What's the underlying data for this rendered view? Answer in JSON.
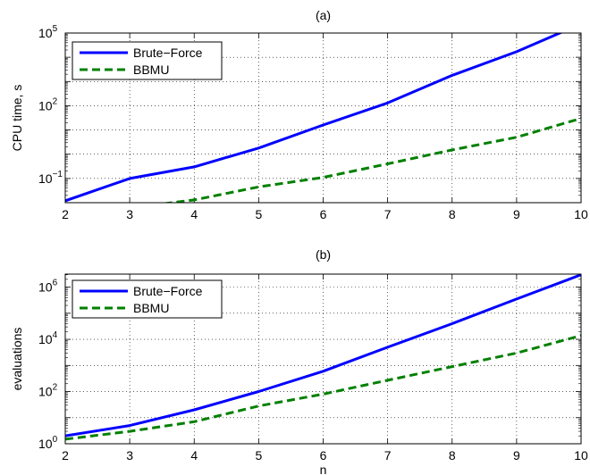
{
  "chart_data": [
    {
      "type": "line",
      "title": "(a)",
      "xlabel": "",
      "ylabel": "CPU time, s",
      "yscale": "log",
      "xlim": [
        2,
        10
      ],
      "ylim_exp": [
        -2,
        5
      ],
      "x": [
        2,
        3,
        4,
        5,
        6,
        7,
        8,
        9,
        10
      ],
      "xticks": [
        "2",
        "3",
        "4",
        "5",
        "6",
        "7",
        "8",
        "9",
        "10"
      ],
      "yticks": [
        {
          "exp": -1,
          "base": "10",
          "power": "−1"
        },
        {
          "exp": 2,
          "base": "10",
          "power": "2"
        },
        {
          "exp": 5,
          "base": "10",
          "power": "5"
        }
      ],
      "grid": true,
      "legend_position": "top-left",
      "series": [
        {
          "name": "Brute−Force",
          "style": "solid",
          "color": "#0000ff",
          "values": [
            0.012,
            0.1,
            0.3,
            1.8,
            16,
            130,
            1800,
            17000,
            240000
          ]
        },
        {
          "name": "BBMU",
          "style": "dashed",
          "color": "#008000",
          "values": [
            0.002,
            0.006,
            0.013,
            0.045,
            0.11,
            0.4,
            1.5,
            5,
            30
          ]
        }
      ]
    },
    {
      "type": "line",
      "title": "(b)",
      "xlabel": "n",
      "ylabel": "evaluations",
      "yscale": "log",
      "xlim": [
        2,
        10
      ],
      "ylim_exp": [
        0,
        6.5
      ],
      "x": [
        2,
        3,
        4,
        5,
        6,
        7,
        8,
        9,
        10
      ],
      "xticks": [
        "2",
        "3",
        "4",
        "5",
        "6",
        "7",
        "8",
        "9",
        "10"
      ],
      "yticks": [
        {
          "exp": 0,
          "base": "10",
          "power": "0"
        },
        {
          "exp": 2,
          "base": "10",
          "power": "2"
        },
        {
          "exp": 4,
          "base": "10",
          "power": "4"
        },
        {
          "exp": 6,
          "base": "10",
          "power": "6"
        }
      ],
      "grid": true,
      "legend_position": "top-left",
      "series": [
        {
          "name": "Brute−Force",
          "style": "solid",
          "color": "#0000ff",
          "values": [
            2,
            5,
            20,
            100,
            600,
            5000,
            40000,
            350000,
            3000000
          ]
        },
        {
          "name": "BBMU",
          "style": "dashed",
          "color": "#008000",
          "values": [
            1.5,
            3,
            7,
            28,
            80,
            270,
            900,
            3000,
            14000
          ]
        }
      ]
    }
  ]
}
